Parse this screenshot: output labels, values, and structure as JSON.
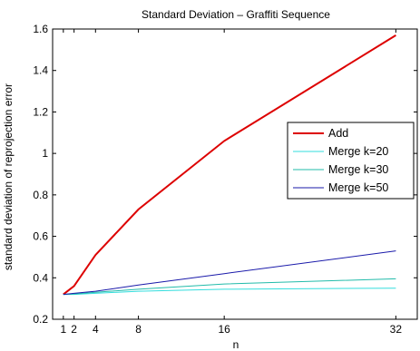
{
  "chart_data": {
    "type": "line",
    "title": "Standard Deviation – Graffiti Sequence",
    "xlabel": "n",
    "ylabel": "standard deviation of reprojection error",
    "x": [
      1,
      2,
      4,
      8,
      16,
      32
    ],
    "xticks": [
      1,
      2,
      4,
      8,
      16,
      32
    ],
    "xlim": [
      0,
      34
    ],
    "ylim": [
      0.2,
      1.6
    ],
    "yticks": [
      0.2,
      0.4,
      0.6,
      0.8,
      1,
      1.2,
      1.4,
      1.6
    ],
    "grid": false,
    "legend_position": "right",
    "series": [
      {
        "name": "Add",
        "color": "#dd0000",
        "values": [
          0.32,
          0.36,
          0.51,
          0.73,
          1.06,
          1.57
        ]
      },
      {
        "name": "Merge k=20",
        "color": "#33dddd",
        "values": [
          0.32,
          0.32,
          0.325,
          0.335,
          0.345,
          0.35
        ]
      },
      {
        "name": "Merge k=30",
        "color": "#22bbaa",
        "values": [
          0.32,
          0.322,
          0.33,
          0.345,
          0.37,
          0.395
        ]
      },
      {
        "name": "Merge k=50",
        "color": "#1a1aaa",
        "values": [
          0.32,
          0.325,
          0.335,
          0.365,
          0.42,
          0.53
        ]
      }
    ]
  }
}
